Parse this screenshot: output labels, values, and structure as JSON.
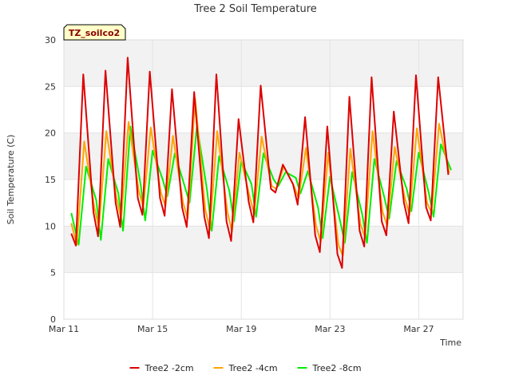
{
  "chart_data": {
    "type": "line",
    "title": "Tree 2 Soil Temperature",
    "xlabel": "Time",
    "ylabel": "Soil Temperature (C)",
    "badge": "TZ_soilco2",
    "ylim": [
      0,
      30
    ],
    "yticks": [
      0,
      5,
      10,
      15,
      20,
      25,
      30
    ],
    "xlim": [
      "2024-03-11",
      "2024-03-29"
    ],
    "xticks": [
      {
        "date": "2024-03-11",
        "label": "Mar 11"
      },
      {
        "date": "2024-03-15",
        "label": "Mar 15"
      },
      {
        "date": "2024-03-19",
        "label": "Mar 19"
      },
      {
        "date": "2024-03-23",
        "label": "Mar 23"
      },
      {
        "date": "2024-03-27",
        "label": "Mar 27"
      }
    ],
    "grid": true,
    "legend_position": "bottom",
    "colors": {
      "tree2_2cm": "#dd0000",
      "tree2_4cm": "#ffa500",
      "tree2_8cm": "#00ee00"
    },
    "series": [
      {
        "name": "Tree2 -2cm",
        "color": "#dd0000",
        "points": [
          [
            "2024-03-11 08:00",
            9.2
          ],
          [
            "2024-03-11 13:00",
            7.9
          ],
          [
            "2024-03-11 21:00",
            26.3
          ],
          [
            "2024-03-12 08:00",
            11.5
          ],
          [
            "2024-03-12 13:00",
            8.9
          ],
          [
            "2024-03-12 21:00",
            26.7
          ],
          [
            "2024-03-13 08:00",
            12.5
          ],
          [
            "2024-03-13 13:00",
            9.9
          ],
          [
            "2024-03-13 21:00",
            28.1
          ],
          [
            "2024-03-14 08:00",
            13.0
          ],
          [
            "2024-03-14 13:00",
            11.2
          ],
          [
            "2024-03-14 21:00",
            26.6
          ],
          [
            "2024-03-15 08:00",
            13.0
          ],
          [
            "2024-03-15 13:00",
            11.1
          ],
          [
            "2024-03-15 21:00",
            24.7
          ],
          [
            "2024-03-16 08:00",
            12.0
          ],
          [
            "2024-03-16 13:00",
            9.9
          ],
          [
            "2024-03-16 21:00",
            24.4
          ],
          [
            "2024-03-17 08:00",
            11.0
          ],
          [
            "2024-03-17 13:00",
            8.7
          ],
          [
            "2024-03-17 21:00",
            26.3
          ],
          [
            "2024-03-18 08:00",
            10.5
          ],
          [
            "2024-03-18 13:00",
            8.4
          ],
          [
            "2024-03-18 21:00",
            21.5
          ],
          [
            "2024-03-19 08:00",
            12.6
          ],
          [
            "2024-03-19 13:00",
            10.4
          ],
          [
            "2024-03-19 21:00",
            25.1
          ],
          [
            "2024-03-20 08:00",
            14.0
          ],
          [
            "2024-03-20 13:00",
            13.6
          ],
          [
            "2024-03-20 21:00",
            16.6
          ],
          [
            "2024-03-21 08:00",
            14.5
          ],
          [
            "2024-03-21 13:00",
            12.3
          ],
          [
            "2024-03-21 21:00",
            21.7
          ],
          [
            "2024-03-22 08:00",
            9.0
          ],
          [
            "2024-03-22 13:00",
            7.2
          ],
          [
            "2024-03-22 21:00",
            20.7
          ],
          [
            "2024-03-23 08:00",
            7.0
          ],
          [
            "2024-03-23 13:00",
            5.5
          ],
          [
            "2024-03-23 21:00",
            23.9
          ],
          [
            "2024-03-24 08:00",
            9.5
          ],
          [
            "2024-03-24 13:00",
            7.8
          ],
          [
            "2024-03-24 21:00",
            26.0
          ],
          [
            "2024-03-25 08:00",
            10.5
          ],
          [
            "2024-03-25 13:00",
            9.0
          ],
          [
            "2024-03-25 21:00",
            22.3
          ],
          [
            "2024-03-26 08:00",
            12.5
          ],
          [
            "2024-03-26 13:00",
            10.3
          ],
          [
            "2024-03-26 21:00",
            26.2
          ],
          [
            "2024-03-27 08:00",
            12.0
          ],
          [
            "2024-03-27 13:00",
            10.6
          ],
          [
            "2024-03-27 21:00",
            26.0
          ],
          [
            "2024-03-28 08:00",
            15.5
          ]
        ]
      },
      {
        "name": "Tree2 -4cm",
        "color": "#ffa500",
        "points": [
          [
            "2024-03-11 08:00",
            10.3
          ],
          [
            "2024-03-11 14:00",
            8.0
          ],
          [
            "2024-03-11 22:00",
            19.1
          ],
          [
            "2024-03-12 09:00",
            12.0
          ],
          [
            "2024-03-12 14:00",
            9.8
          ],
          [
            "2024-03-12 22:00",
            20.2
          ],
          [
            "2024-03-13 09:00",
            13.0
          ],
          [
            "2024-03-13 14:00",
            10.8
          ],
          [
            "2024-03-13 22:00",
            21.2
          ],
          [
            "2024-03-14 09:00",
            13.8
          ],
          [
            "2024-03-14 14:00",
            12.0
          ],
          [
            "2024-03-14 22:00",
            20.6
          ],
          [
            "2024-03-15 09:00",
            13.6
          ],
          [
            "2024-03-15 14:00",
            12.1
          ],
          [
            "2024-03-15 22:00",
            19.7
          ],
          [
            "2024-03-16 09:00",
            12.5
          ],
          [
            "2024-03-16 14:00",
            10.8
          ],
          [
            "2024-03-16 22:00",
            23.7
          ],
          [
            "2024-03-17 09:00",
            11.8
          ],
          [
            "2024-03-17 14:00",
            9.6
          ],
          [
            "2024-03-17 22:00",
            20.2
          ],
          [
            "2024-03-18 09:00",
            11.5
          ],
          [
            "2024-03-18 14:00",
            9.4
          ],
          [
            "2024-03-18 22:00",
            17.9
          ],
          [
            "2024-03-19 09:00",
            13.2
          ],
          [
            "2024-03-19 14:00",
            11.3
          ],
          [
            "2024-03-19 22:00",
            19.6
          ],
          [
            "2024-03-20 09:00",
            14.3
          ],
          [
            "2024-03-20 14:00",
            14.0
          ],
          [
            "2024-03-20 22:00",
            16.4
          ],
          [
            "2024-03-21 09:00",
            14.3
          ],
          [
            "2024-03-21 14:00",
            13.0
          ],
          [
            "2024-03-21 22:00",
            18.4
          ],
          [
            "2024-03-22 09:00",
            10.0
          ],
          [
            "2024-03-22 14:00",
            8.3
          ],
          [
            "2024-03-22 22:00",
            17.9
          ],
          [
            "2024-03-23 09:00",
            8.0
          ],
          [
            "2024-03-23 14:00",
            6.8
          ],
          [
            "2024-03-23 22:00",
            18.3
          ],
          [
            "2024-03-24 09:00",
            10.2
          ],
          [
            "2024-03-24 14:00",
            8.8
          ],
          [
            "2024-03-24 22:00",
            20.2
          ],
          [
            "2024-03-25 09:00",
            11.5
          ],
          [
            "2024-03-25 14:00",
            10.0
          ],
          [
            "2024-03-25 22:00",
            18.5
          ],
          [
            "2024-03-26 09:00",
            13.0
          ],
          [
            "2024-03-26 14:00",
            11.2
          ],
          [
            "2024-03-26 22:00",
            20.5
          ],
          [
            "2024-03-27 09:00",
            12.5
          ],
          [
            "2024-03-27 14:00",
            11.4
          ],
          [
            "2024-03-27 22:00",
            21.0
          ],
          [
            "2024-03-28 09:00",
            15.7
          ]
        ]
      },
      {
        "name": "Tree2 -8cm",
        "color": "#00ee00",
        "points": [
          [
            "2024-03-11 08:00",
            11.4
          ],
          [
            "2024-03-11 16:00",
            8.0
          ],
          [
            "2024-03-12 00:00",
            16.4
          ],
          [
            "2024-03-12 11:00",
            12.8
          ],
          [
            "2024-03-12 16:00",
            8.5
          ],
          [
            "2024-03-13 00:00",
            17.2
          ],
          [
            "2024-03-13 11:00",
            13.5
          ],
          [
            "2024-03-13 16:00",
            9.5
          ],
          [
            "2024-03-14 00:00",
            20.7
          ],
          [
            "2024-03-14 11:00",
            14.5
          ],
          [
            "2024-03-14 16:00",
            10.6
          ],
          [
            "2024-03-15 00:00",
            18.1
          ],
          [
            "2024-03-15 11:00",
            15.0
          ],
          [
            "2024-03-15 16:00",
            13.2
          ],
          [
            "2024-03-16 00:00",
            17.8
          ],
          [
            "2024-03-16 11:00",
            14.2
          ],
          [
            "2024-03-16 16:00",
            12.5
          ],
          [
            "2024-03-17 00:00",
            20.8
          ],
          [
            "2024-03-17 11:00",
            13.8
          ],
          [
            "2024-03-17 16:00",
            9.5
          ],
          [
            "2024-03-18 00:00",
            17.5
          ],
          [
            "2024-03-18 11:00",
            13.8
          ],
          [
            "2024-03-18 16:00",
            10.5
          ],
          [
            "2024-03-19 00:00",
            17.0
          ],
          [
            "2024-03-19 11:00",
            14.5
          ],
          [
            "2024-03-19 16:00",
            11.0
          ],
          [
            "2024-03-20 00:00",
            17.8
          ],
          [
            "2024-03-20 11:00",
            15.0
          ],
          [
            "2024-03-20 16:00",
            14.3
          ],
          [
            "2024-03-21 00:00",
            15.8
          ],
          [
            "2024-03-21 11:00",
            15.2
          ],
          [
            "2024-03-21 16:00",
            13.5
          ],
          [
            "2024-03-22 00:00",
            15.9
          ],
          [
            "2024-03-22 11:00",
            12.0
          ],
          [
            "2024-03-22 16:00",
            8.7
          ],
          [
            "2024-03-23 00:00",
            15.3
          ],
          [
            "2024-03-23 11:00",
            10.5
          ],
          [
            "2024-03-23 16:00",
            8.2
          ],
          [
            "2024-03-24 00:00",
            15.8
          ],
          [
            "2024-03-24 11:00",
            11.2
          ],
          [
            "2024-03-24 16:00",
            8.2
          ],
          [
            "2024-03-25 00:00",
            17.2
          ],
          [
            "2024-03-25 11:00",
            13.0
          ],
          [
            "2024-03-25 16:00",
            10.8
          ],
          [
            "2024-03-26 00:00",
            17.0
          ],
          [
            "2024-03-26 11:00",
            14.0
          ],
          [
            "2024-03-26 16:00",
            11.6
          ],
          [
            "2024-03-27 00:00",
            17.9
          ],
          [
            "2024-03-27 11:00",
            13.5
          ],
          [
            "2024-03-27 16:00",
            11.0
          ],
          [
            "2024-03-28 00:00",
            18.8
          ],
          [
            "2024-03-28 11:00",
            16.0
          ]
        ]
      }
    ]
  }
}
